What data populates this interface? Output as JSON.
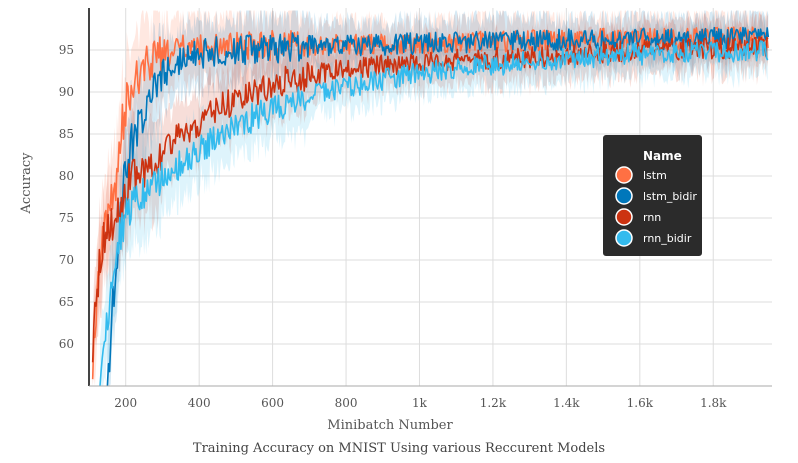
{
  "chart_data": {
    "type": "line",
    "title": "Training Accuracy on MNIST Using various Reccurent Models",
    "xlabel": "Minibatch Number",
    "ylabel": "Accuracy",
    "xlim": [
      100,
      1960
    ],
    "ylim": [
      55,
      100
    ],
    "x_ticks": [
      200,
      400,
      600,
      800,
      1000,
      1200,
      1400,
      1600,
      1800
    ],
    "x_tick_labels": [
      "200",
      "400",
      "600",
      "800",
      "1k",
      "1.2k",
      "1.4k",
      "1.6k",
      "1.8k"
    ],
    "y_ticks": [
      60,
      65,
      70,
      75,
      80,
      85,
      90,
      95
    ],
    "y_tick_labels": [
      "60",
      "65",
      "70",
      "75",
      "80",
      "85",
      "90",
      "95"
    ],
    "grid": true,
    "legend": {
      "title": "Name",
      "position": "right"
    },
    "series": [
      {
        "name": "lstm",
        "color": "#ff7043",
        "x": [
          110,
          130,
          150,
          170,
          190,
          210,
          230,
          250,
          270,
          300,
          350,
          400,
          450,
          500,
          600,
          700,
          800,
          900,
          1000,
          1200,
          1400,
          1600,
          1800,
          1950
        ],
        "y": [
          58,
          71,
          75,
          78,
          86,
          90,
          92,
          93,
          94,
          94.5,
          95,
          95,
          95.2,
          95.5,
          95.5,
          95.5,
          95.6,
          95.7,
          95.8,
          96,
          96.2,
          96.3,
          96.4,
          96.5
        ]
      },
      {
        "name": "lstm_bidir",
        "color": "#0077bb",
        "x": [
          150,
          170,
          190,
          210,
          230,
          250,
          270,
          300,
          350,
          400,
          450,
          500,
          600,
          700,
          800,
          900,
          1000,
          1200,
          1400,
          1600,
          1800,
          1950
        ],
        "y": [
          55,
          68,
          78,
          83,
          86,
          88,
          90,
          92,
          93.5,
          94.5,
          94.8,
          95,
          95.2,
          95.4,
          95.5,
          95.6,
          95.8,
          96,
          96.2,
          96.3,
          96.4,
          96.5
        ]
      },
      {
        "name": "rnn",
        "color": "#cc3311",
        "x": [
          110,
          130,
          150,
          170,
          190,
          210,
          230,
          250,
          270,
          300,
          350,
          400,
          450,
          500,
          550,
          600,
          650,
          700,
          800,
          900,
          1000,
          1100,
          1200,
          1300,
          1400,
          1600,
          1800,
          1950
        ],
        "y": [
          60,
          70,
          74,
          75,
          77,
          79,
          80,
          81,
          82,
          83,
          85,
          86.5,
          88,
          89,
          90,
          90.8,
          91.5,
          92,
          92.8,
          93.2,
          93.5,
          93.8,
          94,
          94.2,
          94.5,
          95,
          95.2,
          95.3
        ]
      },
      {
        "name": "rnn_bidir",
        "color": "#33bbee",
        "x": [
          130,
          150,
          170,
          190,
          210,
          230,
          250,
          270,
          300,
          350,
          400,
          450,
          500,
          550,
          600,
          650,
          700,
          800,
          900,
          1000,
          1100,
          1200,
          1300,
          1400,
          1600,
          1800,
          1950
        ],
        "y": [
          55,
          63,
          70,
          74,
          76,
          77,
          78,
          79,
          80,
          81.5,
          83,
          84.5,
          86,
          87,
          88,
          89,
          89.5,
          90.5,
          91.5,
          92.2,
          92.8,
          93.2,
          93.6,
          94,
          94.5,
          94.8,
          95
        ]
      }
    ]
  }
}
